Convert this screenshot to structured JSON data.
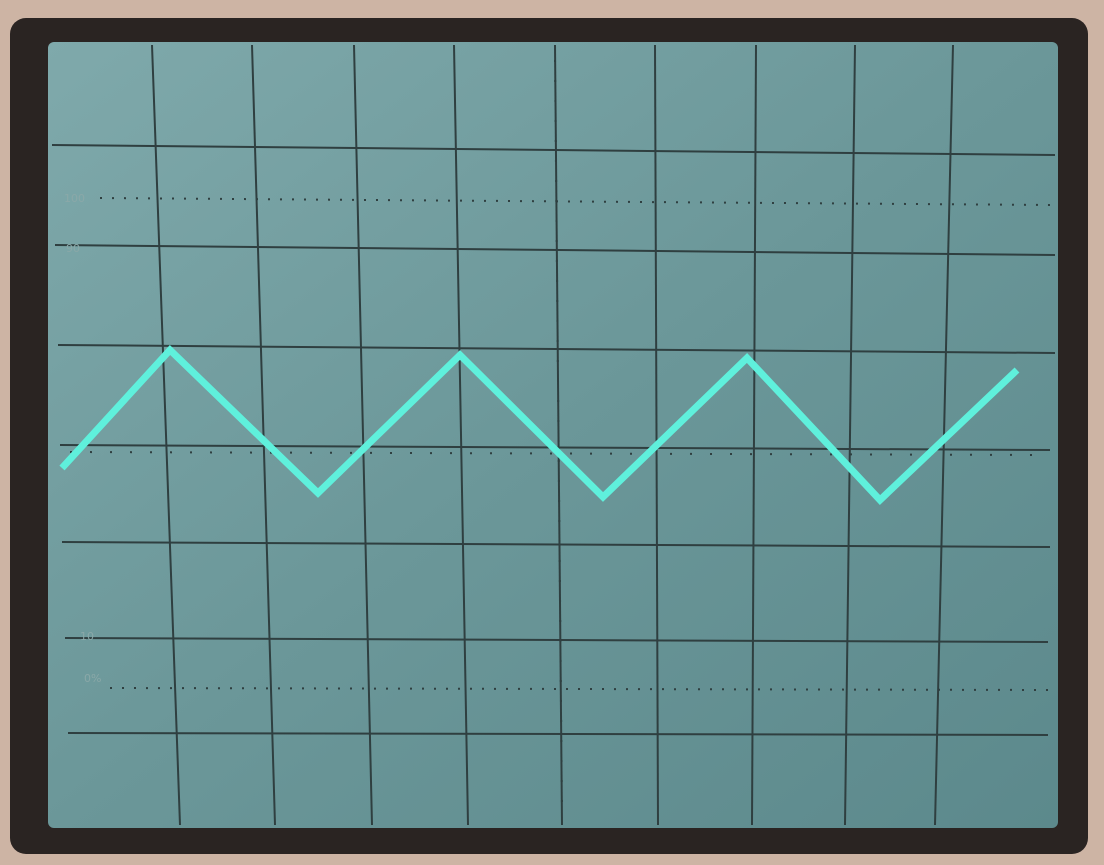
{
  "graticule_labels": [
    "100",
    "90",
    "10",
    "0%"
  ]
}
